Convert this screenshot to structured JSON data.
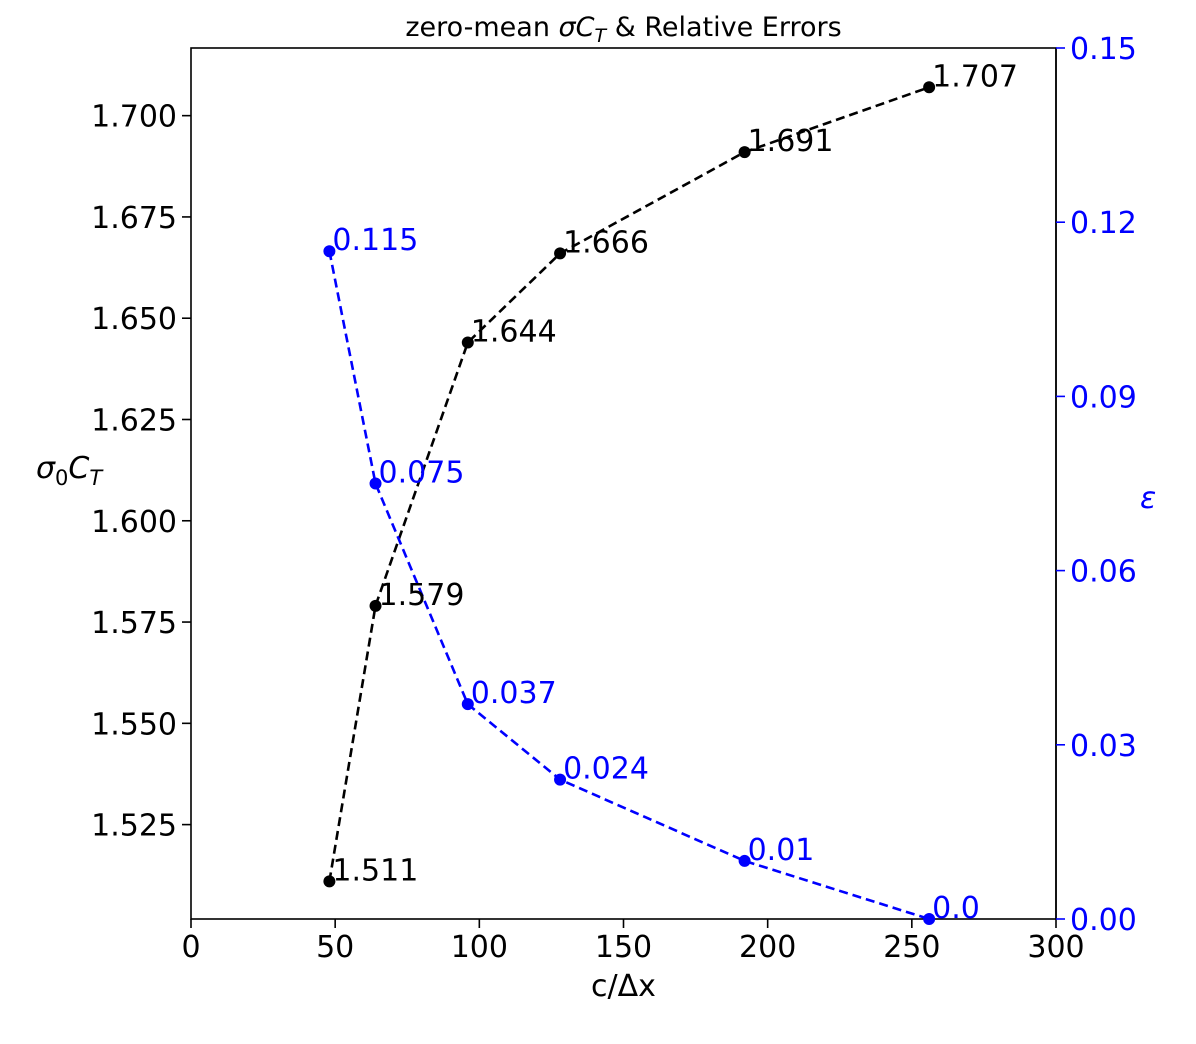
{
  "chart_data": {
    "type": "line",
    "title": "zero-mean σC_T & Relative Errors",
    "xlabel": "c/Δx",
    "ylabel": "σ_0C_T",
    "ylabel_right": "ε",
    "xlim": [
      0,
      300
    ],
    "ylim_left": [
      1.5017,
      1.7167
    ],
    "ylim_right": [
      0.0,
      0.15
    ],
    "x_ticks": [
      "0",
      "50",
      "100",
      "150",
      "200",
      "250",
      "300"
    ],
    "x_tick_values": [
      0,
      50,
      100,
      150,
      200,
      250,
      300
    ],
    "y_left_ticks": [
      "1.525",
      "1.550",
      "1.575",
      "1.600",
      "1.625",
      "1.650",
      "1.675",
      "1.700"
    ],
    "y_left_tick_values": [
      1.525,
      1.55,
      1.575,
      1.6,
      1.625,
      1.65,
      1.675,
      1.7
    ],
    "y_right_ticks": [
      "0.00",
      "0.03",
      "0.06",
      "0.09",
      "0.12",
      "0.15"
    ],
    "y_right_tick_values": [
      0.0,
      0.03,
      0.06,
      0.09,
      0.12,
      0.15
    ],
    "grid": false,
    "series": [
      {
        "axis": "left",
        "color": "#000000",
        "x": [
          48,
          64,
          96,
          128,
          192,
          256
        ],
        "values": [
          1.511,
          1.579,
          1.644,
          1.666,
          1.691,
          1.707
        ],
        "labels": [
          "1.511",
          "1.579",
          "1.644",
          "1.666",
          "1.691",
          "1.707"
        ]
      },
      {
        "axis": "right",
        "color": "#0000ff",
        "x": [
          48,
          64,
          96,
          128,
          192,
          256
        ],
        "values": [
          0.115,
          0.075,
          0.037,
          0.024,
          0.01,
          0.0
        ],
        "labels": [
          "0.115",
          "0.075",
          "0.037",
          "0.024",
          "0.01",
          "0.0"
        ]
      }
    ]
  }
}
